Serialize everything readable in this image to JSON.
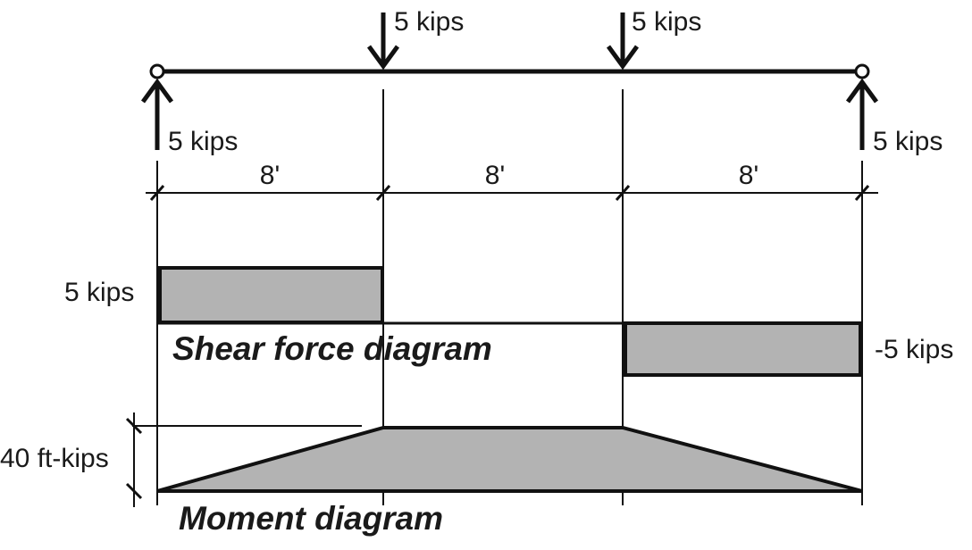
{
  "loads": {
    "point_load_1": "5 kips",
    "point_load_2": "5 kips",
    "reaction_left": "5 kips",
    "reaction_right": "5 kips"
  },
  "dimensions": {
    "span_1": "8'",
    "span_2": "8'",
    "span_3": "8'"
  },
  "shear": {
    "positive_label": "5 kips",
    "negative_label": "-5 kips",
    "title": "Shear force diagram"
  },
  "moment": {
    "max_label": "40 ft-kips",
    "title": "Moment diagram"
  },
  "colors": {
    "fill": "#b3b3b3",
    "line": "#111111"
  }
}
